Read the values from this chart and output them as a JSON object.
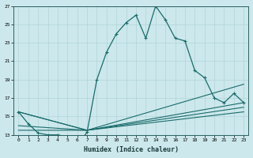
{
  "xlabel": "Humidex (Indice chaleur)",
  "bg_color": "#cce8ec",
  "grid_color": "#b0d4d8",
  "line_color": "#1a6b6b",
  "xlim": [
    -0.5,
    23.5
  ],
  "ylim": [
    13,
    27
  ],
  "yticks": [
    13,
    15,
    17,
    19,
    21,
    23,
    25,
    27
  ],
  "xticks": [
    0,
    1,
    2,
    3,
    4,
    5,
    6,
    7,
    8,
    9,
    10,
    11,
    12,
    13,
    14,
    15,
    16,
    17,
    18,
    19,
    20,
    21,
    22,
    23
  ],
  "line1_x": [
    0,
    1,
    2,
    3,
    4,
    5,
    6,
    7,
    8,
    9,
    10,
    11,
    12,
    13,
    14,
    15,
    16,
    17,
    18,
    19,
    20,
    21,
    22,
    23
  ],
  "line1_y": [
    15.5,
    14.2,
    13.2,
    13.0,
    13.0,
    12.8,
    11.8,
    13.3,
    19.0,
    22.0,
    24.0,
    25.2,
    26.0,
    23.5,
    27.0,
    25.5,
    23.5,
    23.2,
    20.0,
    19.2,
    17.0,
    16.5,
    17.5,
    16.5
  ],
  "line2_x": [
    0,
    7,
    23
  ],
  "line2_y": [
    13.5,
    13.5,
    18.5
  ],
  "line3_x": [
    0,
    7,
    23
  ],
  "line3_y": [
    15.5,
    13.5,
    16.5
  ],
  "line4_x": [
    0,
    7,
    23
  ],
  "line4_y": [
    15.5,
    13.5,
    15.5
  ],
  "line5_x": [
    0,
    7,
    23
  ],
  "line5_y": [
    14.0,
    13.5,
    16.0
  ]
}
